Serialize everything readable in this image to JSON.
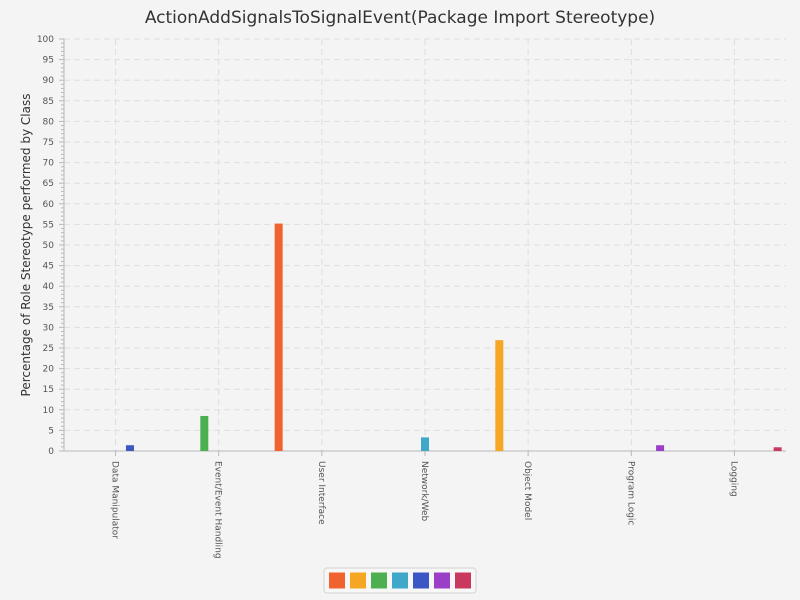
{
  "chart_data": {
    "type": "bar",
    "title": "ActionAddSignalsToSignalEvent(Package Import Stereotype)",
    "xlabel": "",
    "ylabel": "Percentage of Role Stereotype performed by Class",
    "ylim": [
      0,
      100
    ],
    "y_major_step": 5,
    "grid": true,
    "legend_position": "bottom",
    "categories": [
      "Data Manipulator",
      "Event/Event Handling",
      "User Interface",
      "Network/Web",
      "Object Model",
      "Program Logic",
      "Logging"
    ],
    "series": [
      {
        "color": "#f0622e",
        "values": [
          0,
          0,
          55.2,
          0,
          0,
          0,
          0
        ]
      },
      {
        "color": "#f5a623",
        "values": [
          0,
          0,
          0,
          0,
          26.9,
          0,
          0
        ]
      },
      {
        "color": "#4caf50",
        "values": [
          0,
          8.5,
          0,
          0,
          0,
          0,
          0
        ]
      },
      {
        "color": "#3fa7c9",
        "values": [
          0,
          0,
          0,
          3.3,
          0,
          0,
          0
        ]
      },
      {
        "color": "#3a57c4",
        "values": [
          1.4,
          0,
          0,
          0,
          0,
          0,
          0
        ]
      },
      {
        "color": "#9b3fc9",
        "values": [
          0,
          0,
          0,
          0,
          0,
          1.4,
          0
        ]
      },
      {
        "color": "#c9385f",
        "values": [
          0,
          0,
          0,
          0,
          0,
          0,
          0.9
        ]
      }
    ]
  }
}
